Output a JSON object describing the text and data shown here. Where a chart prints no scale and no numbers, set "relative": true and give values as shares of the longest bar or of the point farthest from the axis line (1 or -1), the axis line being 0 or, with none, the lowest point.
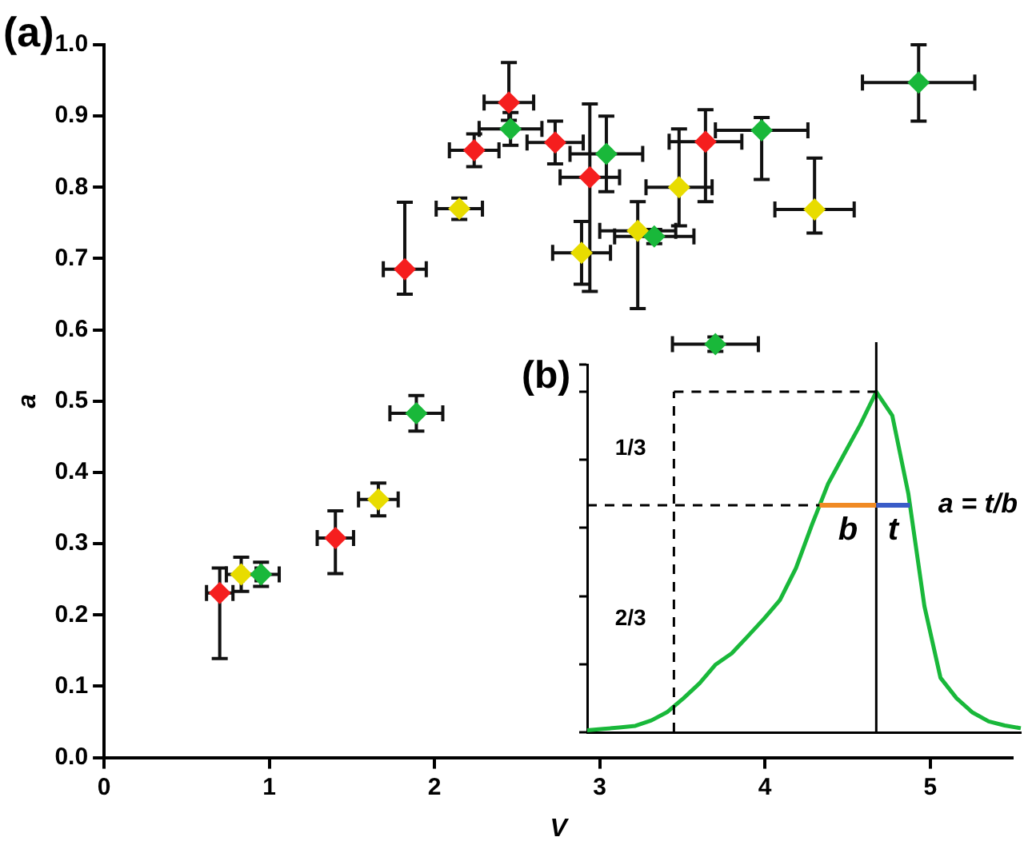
{
  "chart_data": [
    {
      "type": "scatter",
      "xlabel": "V",
      "ylabel": "a",
      "annotations": [
        "(a)"
      ],
      "marker": "diamond",
      "grid": false,
      "legend": false,
      "xlim": [
        0,
        5.5
      ],
      "xticks": [
        0,
        1,
        2,
        3,
        4,
        5
      ],
      "ylim": [
        0,
        1
      ],
      "yticks": [
        {
          "value": 0,
          "label": "0.0"
        },
        0.1,
        0.2,
        0.3,
        0.4,
        0.5,
        0.6,
        0.7,
        0.8,
        0.9,
        {
          "value": 1,
          "label": "1.0"
        }
      ],
      "series": [
        {
          "color": "#19b83a",
          "x": [
            0.95,
            1.89,
            2.46,
            3.04,
            3.33,
            3.98,
            4.93,
            3.7
          ],
          "values": [
            0.257,
            0.483,
            0.882,
            0.847,
            0.731,
            0.88,
            0.947,
            0.58
          ],
          "errors": [
            0.017,
            0.025,
            0.023,
            0.053,
            0.01,
            [
              0.811,
              0.898
            ],
            [
              0.893,
              1.0
            ],
            0.01
          ],
          "xerrors": [
            0.11,
            0.16,
            0.19,
            0.22,
            0.24,
            0.28,
            0.34,
            0.26
          ]
        },
        {
          "color": "#e8dc00",
          "x": [
            0.83,
            1.66,
            2.15,
            2.89,
            3.23,
            3.48,
            4.3
          ],
          "values": [
            0.257,
            0.362,
            0.77,
            0.708,
            0.739,
            0.8,
            0.769
          ],
          "errors": [
            0.024,
            0.023,
            0.015,
            0.044,
            [
              0.63,
              0.78
            ],
            [
              0.746,
              0.882
            ],
            [
              0.736,
              0.841
            ]
          ],
          "xerrors": [
            0.09,
            0.12,
            0.14,
            0.175,
            0.23,
            0.2,
            0.24
          ]
        },
        {
          "color": "#f51e1e",
          "x": [
            0.7,
            1.4,
            1.82,
            2.24,
            2.45,
            2.73,
            2.94,
            3.64
          ],
          "values": [
            0.231,
            0.308,
            0.685,
            0.852,
            0.919,
            0.863,
            0.814,
            0.864
          ],
          "errors": [
            [
              0.139,
              0.266
            ],
            [
              0.258,
              0.346
            ],
            [
              0.65,
              0.779
            ],
            0.023,
            [
              0.894,
              0.975
            ],
            0.03,
            [
              0.654,
              0.917
            ],
            [
              0.78,
              0.909
            ]
          ],
          "xerrors": [
            0.08,
            0.11,
            0.13,
            0.15,
            0.15,
            0.17,
            0.18,
            0.22
          ]
        }
      ]
    },
    {
      "type": "line",
      "relative": true,
      "annotations": [
        "(b)",
        "1/3",
        "2/3",
        "a = t/b",
        "b",
        "t"
      ],
      "categories": [
        null,
        null,
        null,
        null,
        null,
        null,
        null,
        null,
        null,
        null,
        null,
        null,
        null,
        null,
        null,
        null,
        null,
        null,
        null,
        null,
        null,
        null,
        null,
        null,
        null,
        null,
        null,
        null
      ],
      "series": [
        {
          "color": "#19b83a",
          "values": [
            0.006,
            0.01,
            0.014,
            0.019,
            0.035,
            0.06,
            0.1,
            0.144,
            0.199,
            0.232,
            0.282,
            0.333,
            0.388,
            0.482,
            0.61,
            0.73,
            0.817,
            0.903,
            1,
            0.93,
            0.7,
            0.37,
            0.16,
            0.1,
            0.058,
            0.032,
            0.02,
            0.012
          ]
        }
      ]
    }
  ]
}
